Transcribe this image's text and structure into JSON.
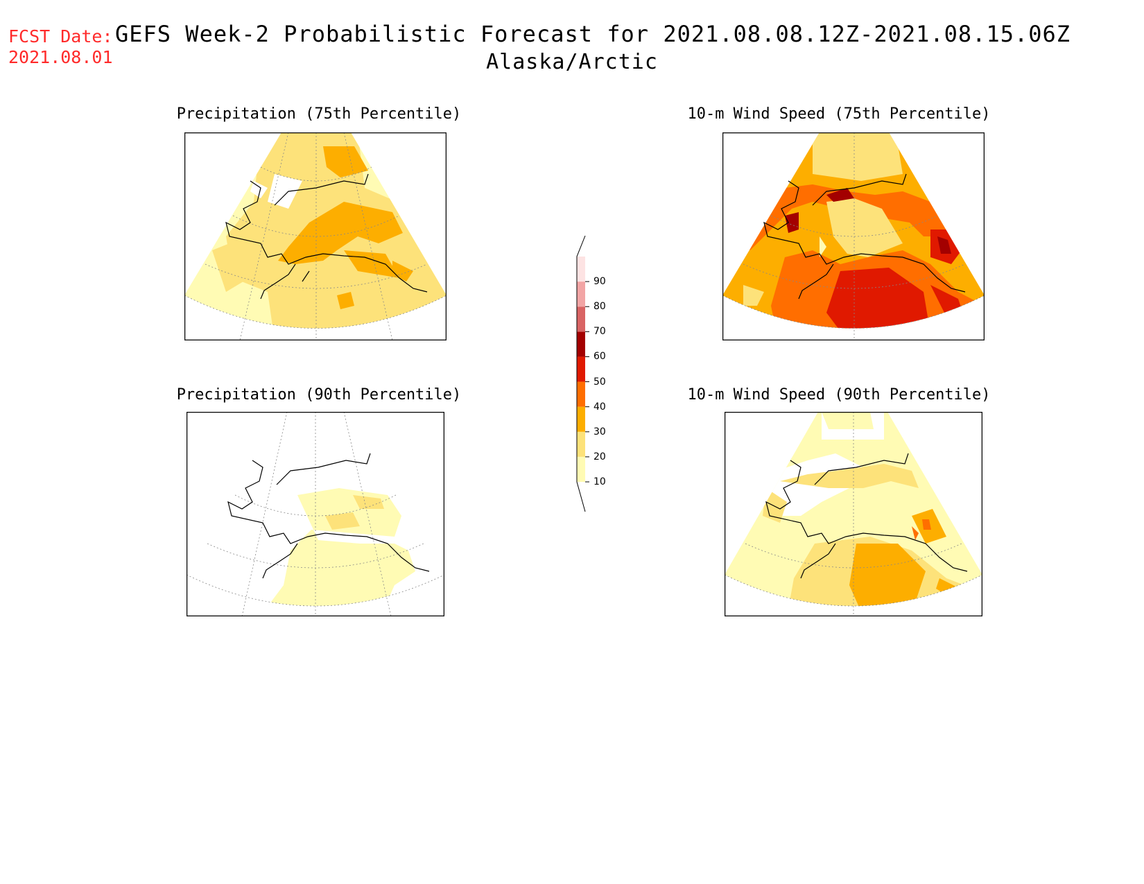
{
  "header": {
    "fcst_label": "FCST Date:",
    "fcst_date": "2021.08.01",
    "title": "GEFS Week-2 Probabilistic Forecast for 2021.08.08.12Z-2021.08.15.06Z",
    "subtitle": "Alaska/Arctic"
  },
  "panels": [
    {
      "title": "Precipitation (75th Percentile)"
    },
    {
      "title": "10-m Wind Speed (75th Percentile)"
    },
    {
      "title": "Precipitation (90th Percentile)"
    },
    {
      "title": "10-m Wind Speed (90th Percentile)"
    }
  ],
  "colorbar": {
    "levels": [
      "10",
      "20",
      "30",
      "40",
      "50",
      "60",
      "70",
      "80",
      "90"
    ],
    "colors": [
      "#fffbb4",
      "#fde27a",
      "#fdae00",
      "#ff6e00",
      "#e01900",
      "#a30000",
      "#d96464",
      "#f2a5a5",
      "#fde3e3"
    ]
  }
}
